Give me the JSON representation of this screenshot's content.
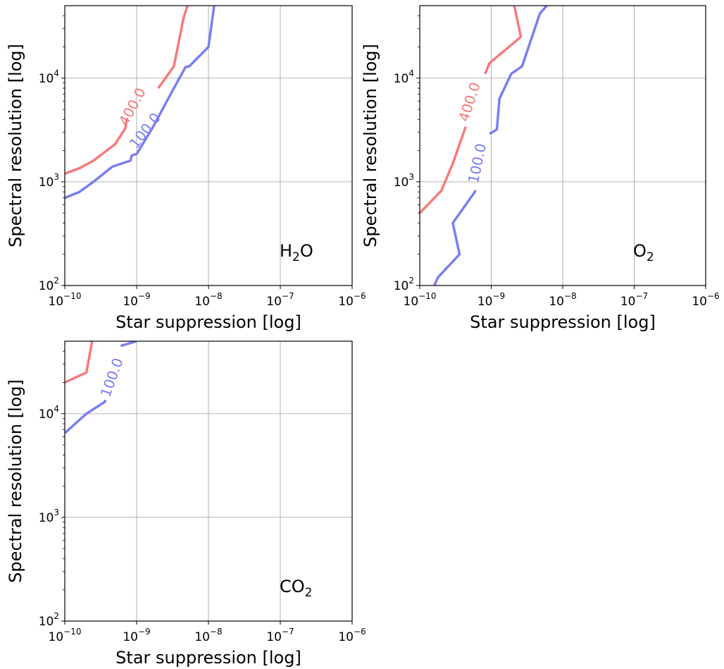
{
  "chart_data": [
    {
      "type": "line",
      "label_main": "H",
      "label_sub": "2",
      "label_tail": "O",
      "xlabel": "Star suppression [log]",
      "ylabel": "Spectral resolution [log]",
      "xscale": "log",
      "yscale": "log",
      "xlim": [
        1e-10,
        1e-06
      ],
      "ylim": [
        100,
        50000
      ],
      "x_ticks": [
        {
          "base": "10",
          "exp": "−10"
        },
        {
          "base": "10",
          "exp": "−9"
        },
        {
          "base": "10",
          "exp": "−8"
        },
        {
          "base": "10",
          "exp": "−7"
        },
        {
          "base": "10",
          "exp": "−6"
        }
      ],
      "y_ticks": [
        {
          "base": "10",
          "exp": "2"
        },
        {
          "base": "10",
          "exp": "3"
        },
        {
          "base": "10",
          "exp": "4"
        }
      ],
      "grid": true,
      "series": [
        {
          "label": "400.0",
          "color": "#f87a7a",
          "x": [
            1e-10,
            1.6e-10,
            2.5e-10,
            5e-10,
            7e-10,
            7.3e-10,
            2e-09,
            3.3e-09,
            4.5e-09,
            5.1e-09
          ],
          "y": [
            1200,
            1350,
            1600,
            2300,
            3300,
            4100,
            8000,
            13000,
            38000,
            50000
          ]
        },
        {
          "label": "100.0",
          "color": "#7a7ef2",
          "x": [
            1e-10,
            1.6e-10,
            2.5e-10,
            4.6e-10,
            8.2e-10,
            8.6e-10,
            1e-09,
            1.7e-09,
            2.7e-09,
            3.3e-09,
            4.8e-09,
            5.4e-09,
            1e-08,
            1.2e-08
          ],
          "y": [
            700,
            800,
            1000,
            1400,
            1600,
            1800,
            1850,
            3400,
            6200,
            8000,
            12800,
            13000,
            20000,
            50000
          ]
        }
      ]
    },
    {
      "type": "line",
      "label_main": "O",
      "label_sub": "2",
      "label_tail": "",
      "xlabel": "Star suppression [log]",
      "ylabel": "Spectral resolution [log]",
      "xscale": "log",
      "yscale": "log",
      "xlim": [
        1e-10,
        1e-06
      ],
      "ylim": [
        100,
        50000
      ],
      "x_ticks": [
        {
          "base": "10",
          "exp": "−10"
        },
        {
          "base": "10",
          "exp": "−9"
        },
        {
          "base": "10",
          "exp": "−8"
        },
        {
          "base": "10",
          "exp": "−7"
        },
        {
          "base": "10",
          "exp": "−6"
        }
      ],
      "y_ticks": [
        {
          "base": "10",
          "exp": "2"
        },
        {
          "base": "10",
          "exp": "3"
        },
        {
          "base": "10",
          "exp": "4"
        }
      ],
      "grid": true,
      "series": [
        {
          "label": "400.0",
          "color": "#f87a7a",
          "x": [
            1e-10,
            2e-10,
            2.9e-10,
            4.4e-10,
            8.2e-10,
            9.5e-10,
            2.6e-09,
            2.1e-09
          ],
          "y": [
            500,
            820,
            1500,
            3400,
            11000,
            14000,
            25000,
            50000
          ]
        },
        {
          "label": "100.0",
          "color": "#7a7ef2",
          "x": [
            1.6e-10,
            1.8e-10,
            3.6e-10,
            2.9e-10,
            5.9e-10,
            6e-10,
            9.5e-10,
            1.2e-09,
            1.3e-09,
            1.9e-09,
            2.7e-09,
            4.8e-09,
            6e-09
          ],
          "y": [
            100,
            120,
            200,
            400,
            800,
            830,
            2900,
            3200,
            6300,
            11000,
            13000,
            42000,
            50000
          ]
        }
      ]
    },
    {
      "type": "line",
      "label_main": "CO",
      "label_sub": "2",
      "label_tail": "",
      "xlabel": "Star suppression [log]",
      "ylabel": "Spectral resolution [log]",
      "xscale": "log",
      "yscale": "log",
      "xlim": [
        1e-10,
        1e-06
      ],
      "ylim": [
        100,
        50000
      ],
      "x_ticks": [
        {
          "base": "10",
          "exp": "−10"
        },
        {
          "base": "10",
          "exp": "−9"
        },
        {
          "base": "10",
          "exp": "−8"
        },
        {
          "base": "10",
          "exp": "−7"
        },
        {
          "base": "10",
          "exp": "−6"
        }
      ],
      "y_ticks": [
        {
          "base": "10",
          "exp": "2"
        },
        {
          "base": "10",
          "exp": "3"
        },
        {
          "base": "10",
          "exp": "4"
        }
      ],
      "grid": true,
      "series": [
        {
          "label": "",
          "color": "#f87a7a",
          "x": [
            1e-10,
            2e-10,
            2.4e-10
          ],
          "y": [
            20000,
            25000,
            50000
          ]
        },
        {
          "label": "100.0",
          "color": "#7a7ef2",
          "x": [
            1e-10,
            2e-10,
            3.6e-10,
            3.7e-10,
            6e-10,
            1e-09
          ],
          "y": [
            6500,
            10000,
            13000,
            13500,
            45000,
            50000
          ]
        }
      ]
    }
  ]
}
